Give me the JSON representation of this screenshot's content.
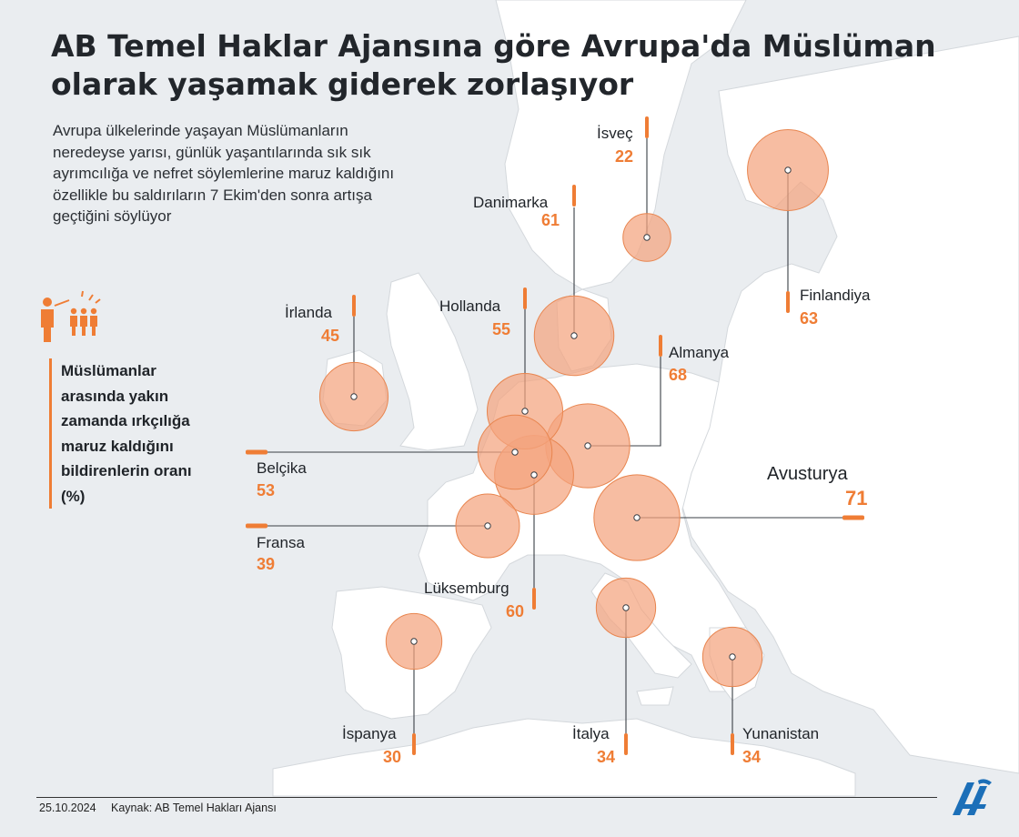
{
  "title": "AB Temel Haklar Ajansına göre Avrupa'da Müslüman olarak yaşamak giderek zorlaşıyor",
  "subtitle": "Avrupa ülkelerinde yaşayan Müslümanların neredeyse yarısı, günlük yaşantılarında sık sık ayrımcılığa ve nefret söylemlerine maruz kaldığını özellikle bu saldırıların 7 Ekim'den sonra artışa geçtiğini söylüyor",
  "legend": {
    "label": "Müslümanlar arasında yakın zamanda ırkçılığa maruz kaldığını bildirenlerin oranı (%)",
    "icon": "people-group-icon"
  },
  "footer": {
    "date": "25.10.2024",
    "source": "Kaynak: AB Temel Hakları Ajansı",
    "logo": "anadolu-agency-logo"
  },
  "colors": {
    "bubble_fill": "#f4a37e",
    "bubble_stroke": "#e8854f",
    "accent": "#ef7d35",
    "land": "#ffffff",
    "sea": "#e8ebee"
  },
  "chart_data": {
    "type": "bubble-map",
    "title": "AB Temel Haklar Ajansına göre Avrupa'da Müslüman olarak yaşamak giderek zorlaşıyor",
    "unit": "%",
    "countries": [
      {
        "name": "İsveç",
        "value": 22
      },
      {
        "name": "Danimarka",
        "value": 61
      },
      {
        "name": "Finlandiya",
        "value": 63
      },
      {
        "name": "İrlanda",
        "value": 45
      },
      {
        "name": "Hollanda",
        "value": 55
      },
      {
        "name": "Almanya",
        "value": 68
      },
      {
        "name": "Belçika",
        "value": 53
      },
      {
        "name": "Avusturya",
        "value": 71
      },
      {
        "name": "Fransa",
        "value": 39
      },
      {
        "name": "Lüksemburg",
        "value": 60
      },
      {
        "name": "İspanya",
        "value": 30
      },
      {
        "name": "İtalya",
        "value": 34
      },
      {
        "name": "Yunanistan",
        "value": 34
      }
    ]
  }
}
